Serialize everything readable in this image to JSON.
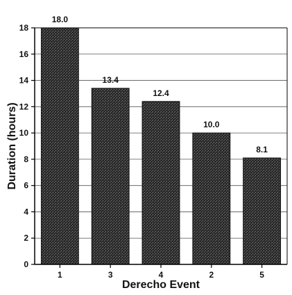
{
  "chart_data": {
    "type": "bar",
    "categories": [
      "1",
      "3",
      "4",
      "2",
      "5"
    ],
    "values": [
      18.0,
      13.4,
      12.4,
      10.0,
      8.1
    ],
    "value_labels": [
      "18.0",
      "13.4",
      "12.4",
      "10.0",
      "8.1"
    ],
    "title": "",
    "xlabel": "Derecho Event",
    "ylabel": "Duration (hours)",
    "ylim": [
      0,
      18
    ],
    "yticks": [
      0,
      2,
      4,
      6,
      8,
      10,
      12,
      14,
      16,
      18
    ],
    "grid": true,
    "bar_color": "#2b2b2b"
  }
}
